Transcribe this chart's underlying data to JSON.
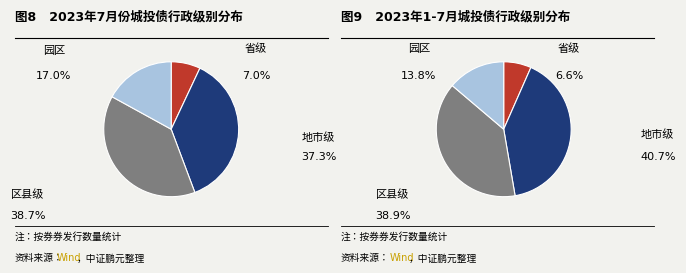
{
  "fig1_title": "图8   2023年7月份城投债行政级别分布",
  "fig2_title": "图9   2023年1-7月城投债行政级别分布",
  "fig1_values": [
    7.0,
    37.3,
    38.7,
    17.0
  ],
  "fig2_values": [
    6.6,
    40.7,
    38.9,
    13.8
  ],
  "fig1_pct_labels": [
    "7.0%",
    "37.3%",
    "38.7%",
    "17.0%"
  ],
  "fig2_pct_labels": [
    "6.6%",
    "40.7%",
    "38.9%",
    "13.8%"
  ],
  "cat_labels": [
    "省级",
    "地市级",
    "区县级",
    "园区"
  ],
  "colors": [
    "#c0392b",
    "#1e3a7a",
    "#7f7f7f",
    "#a8c4e0"
  ],
  "note": "注：按券券发行数量统计",
  "source_pre": "资料来源：",
  "source_wind": "Wind",
  "source_post": "，中证鹏元整理",
  "wind_color": "#c8a000",
  "bg_color": "#f2f2ee",
  "title_fontsize": 9,
  "label_fontsize": 8,
  "note_fontsize": 7,
  "startangle": 90
}
